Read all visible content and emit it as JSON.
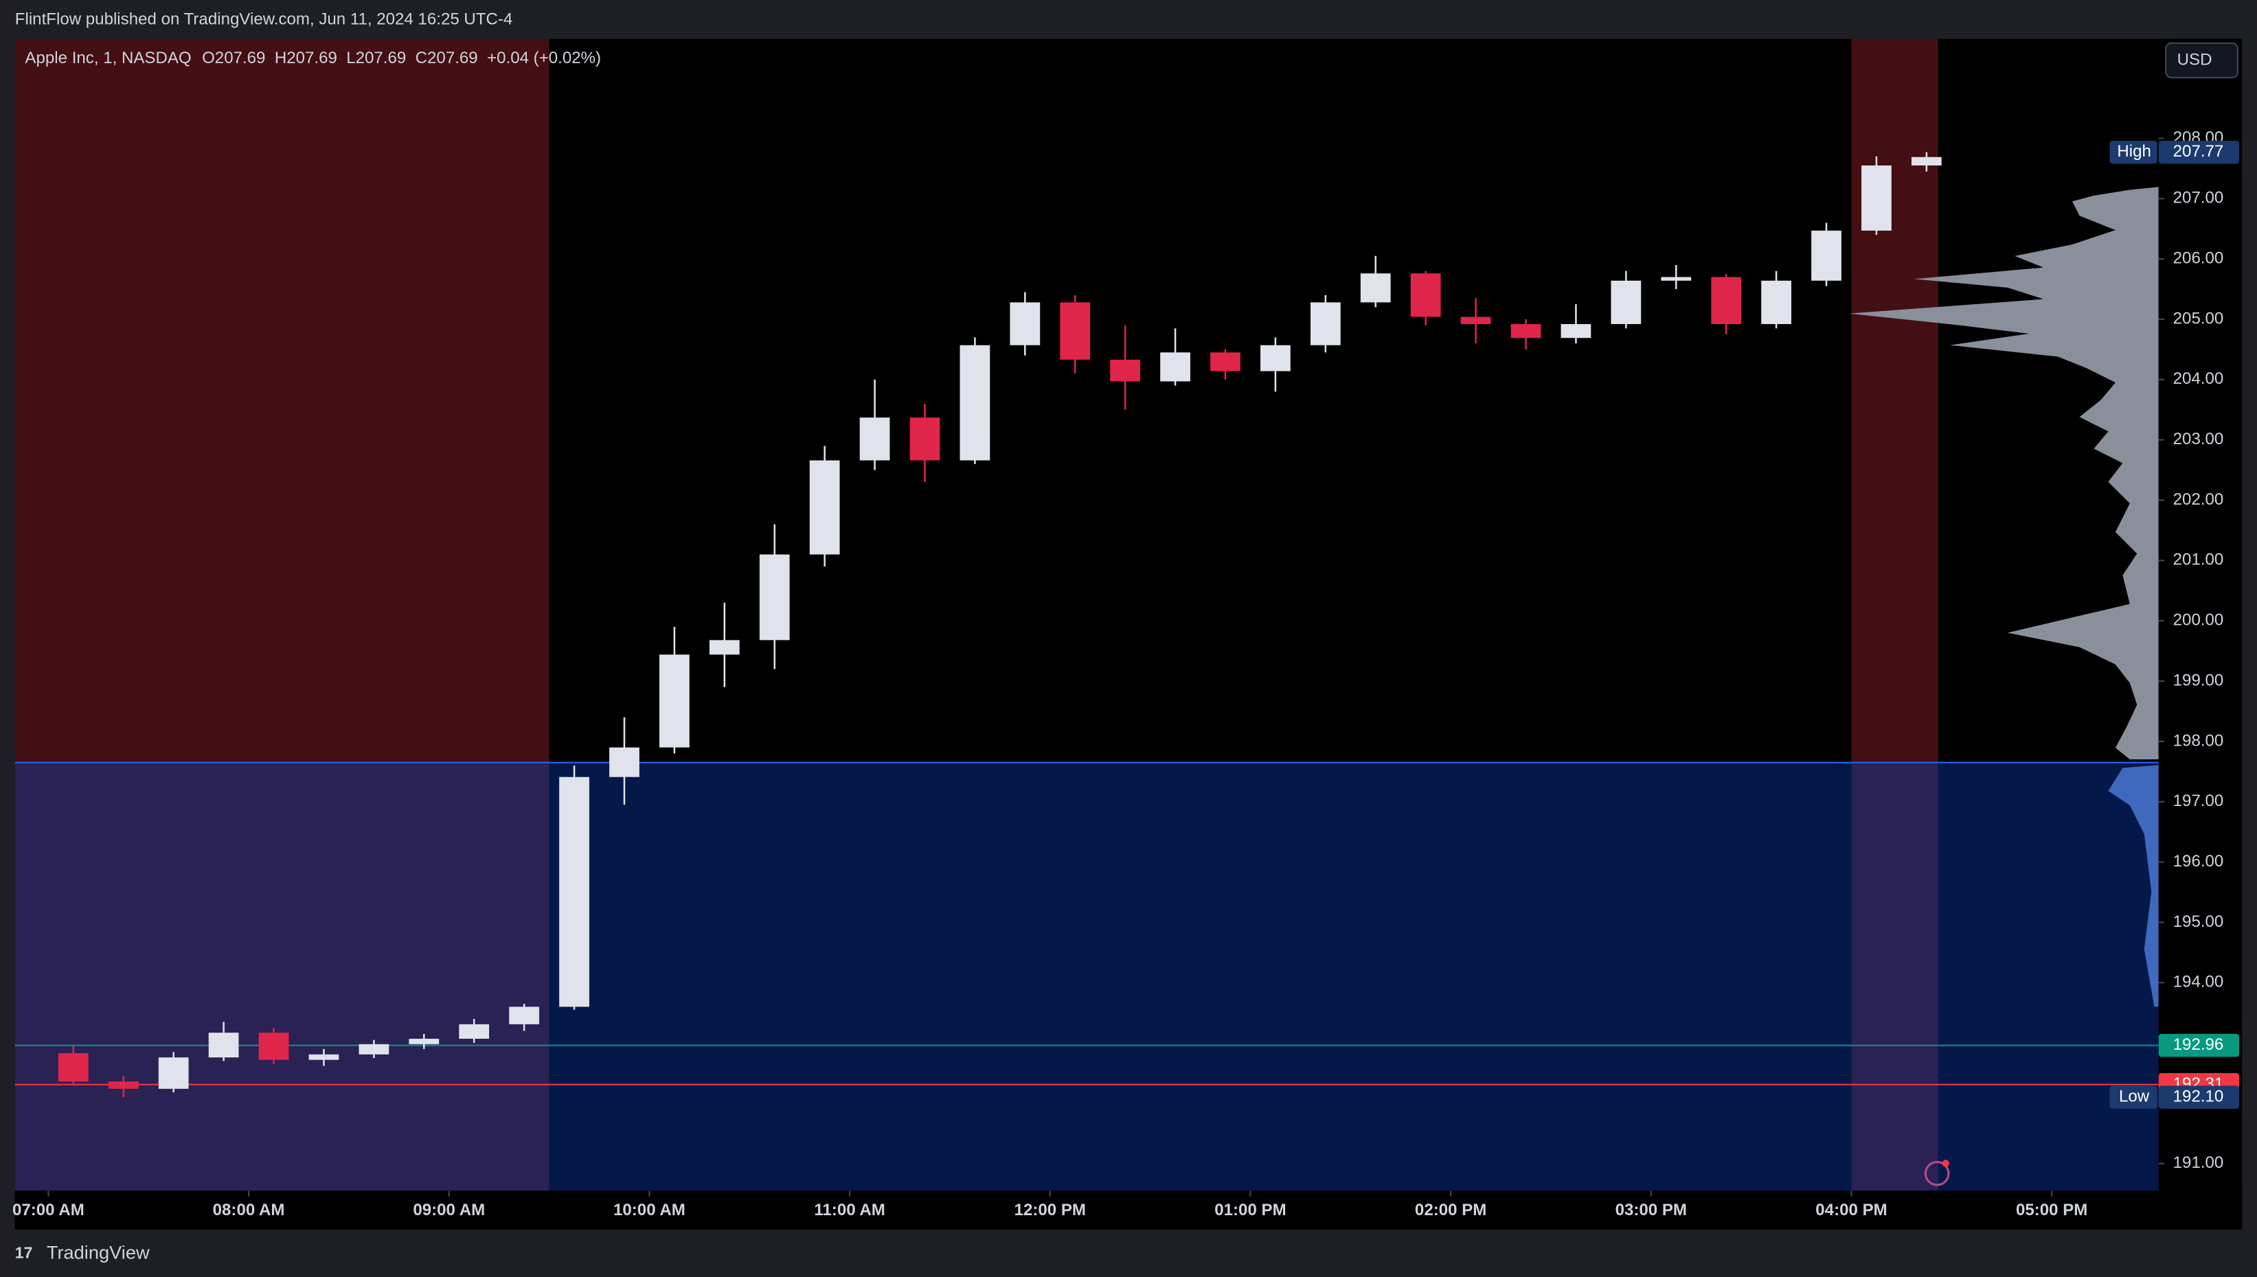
{
  "header": {
    "text": "FlintFlow published on TradingView.com, Jun 11, 2024 16:25 UTC-4"
  },
  "footer": {
    "brand": "TradingView"
  },
  "chart_data": {
    "type": "candlestick",
    "title": "Apple Inc, 1, NASDAQ",
    "ohlc_legend": "O207.69  H207.69  L207.69  C207.69  +0.04 (+0.02%)",
    "currency": "USD",
    "x": [
      "07:00",
      "07:15",
      "07:30",
      "07:45",
      "08:00",
      "08:15",
      "08:30",
      "08:45",
      "09:00",
      "09:15",
      "09:30",
      "09:45",
      "10:00",
      "10:15",
      "10:30",
      "10:45",
      "11:00",
      "11:15",
      "11:30",
      "11:45",
      "12:00",
      "12:15",
      "12:30",
      "12:45",
      "13:00",
      "13:15",
      "13:30",
      "13:45",
      "14:00",
      "14:15",
      "14:30",
      "14:45",
      "15:00",
      "15:15",
      "15:30",
      "15:45",
      "16:00",
      "16:15"
    ],
    "open": [
      192.83,
      192.36,
      192.24,
      192.76,
      193.17,
      192.72,
      192.81,
      192.98,
      193.07,
      193.31,
      193.6,
      197.41,
      197.9,
      199.44,
      199.68,
      201.1,
      202.66,
      203.37,
      202.66,
      204.57,
      205.28,
      204.33,
      203.97,
      204.45,
      204.14,
      204.57,
      205.28,
      205.76,
      205.04,
      204.92,
      204.69,
      204.92,
      205.64,
      205.7,
      204.92,
      205.64,
      206.47,
      207.55
    ],
    "high": [
      192.95,
      192.45,
      192.85,
      193.35,
      193.25,
      192.9,
      193.05,
      193.15,
      193.4,
      193.65,
      197.6,
      198.4,
      199.9,
      200.3,
      201.6,
      202.9,
      204.0,
      203.6,
      204.7,
      205.45,
      205.4,
      204.9,
      204.85,
      204.5,
      204.7,
      205.4,
      206.05,
      205.8,
      205.35,
      205.0,
      205.25,
      205.8,
      205.9,
      205.75,
      205.8,
      206.6,
      207.7,
      207.77
    ],
    "low": [
      192.3,
      192.1,
      192.18,
      192.7,
      192.65,
      192.62,
      192.75,
      192.9,
      193.0,
      193.2,
      193.55,
      196.95,
      197.8,
      198.9,
      199.2,
      200.9,
      202.5,
      202.3,
      202.6,
      204.4,
      204.1,
      203.5,
      203.9,
      204.0,
      203.8,
      204.45,
      205.2,
      204.9,
      204.6,
      204.5,
      204.6,
      204.85,
      205.5,
      204.75,
      204.85,
      205.55,
      206.4,
      207.45
    ],
    "close": [
      192.36,
      192.24,
      192.76,
      193.17,
      192.72,
      192.81,
      192.98,
      193.07,
      193.31,
      193.6,
      197.41,
      197.9,
      199.44,
      199.68,
      201.1,
      202.66,
      203.37,
      202.66,
      204.57,
      205.28,
      204.33,
      203.97,
      204.45,
      204.14,
      204.57,
      205.28,
      205.76,
      205.04,
      204.92,
      204.69,
      204.92,
      205.64,
      205.7,
      204.92,
      205.64,
      206.47,
      207.55,
      207.69
    ],
    "up_color": "#e0e3eb",
    "down_color": "#e0254b",
    "xlim": [
      "06:50",
      "17:32"
    ],
    "xticks": [
      {
        "value": "07:00",
        "label": "07:00 AM"
      },
      {
        "value": "08:00",
        "label": "08:00 AM"
      },
      {
        "value": "09:00",
        "label": "09:00 AM"
      },
      {
        "value": "10:00",
        "label": "10:00 AM"
      },
      {
        "value": "11:00",
        "label": "11:00 AM"
      },
      {
        "value": "12:00",
        "label": "12:00 PM"
      },
      {
        "value": "13:00",
        "label": "01:00 PM"
      },
      {
        "value": "14:00",
        "label": "02:00 PM"
      },
      {
        "value": "15:00",
        "label": "03:00 PM"
      },
      {
        "value": "16:00",
        "label": "04:00 PM"
      },
      {
        "value": "17:00",
        "label": "05:00 PM"
      }
    ],
    "ylim": [
      190.55,
      209.65
    ],
    "yticks": [
      {
        "value": 191,
        "label": "191.00"
      },
      {
        "value": 194,
        "label": "194.00"
      },
      {
        "value": 195,
        "label": "195.00"
      },
      {
        "value": 196,
        "label": "196.00"
      },
      {
        "value": 197,
        "label": "197.00"
      },
      {
        "value": 198,
        "label": "198.00"
      },
      {
        "value": 199,
        "label": "199.00"
      },
      {
        "value": 200,
        "label": "200.00"
      },
      {
        "value": 201,
        "label": "201.00"
      },
      {
        "value": 202,
        "label": "202.00"
      },
      {
        "value": 203,
        "label": "203.00"
      },
      {
        "value": 204,
        "label": "204.00"
      },
      {
        "value": 205,
        "label": "205.00"
      },
      {
        "value": 206,
        "label": "206.00"
      },
      {
        "value": 207,
        "label": "207.00"
      },
      {
        "value": 208,
        "label": "208.00"
      }
    ],
    "sessions": [
      {
        "start": "06:50",
        "end": "09:30",
        "color": "#f23645"
      },
      {
        "start": "16:00",
        "end": "16:26",
        "color": "#f23645"
      }
    ],
    "zone": {
      "top": 197.65,
      "color": "#0a3cad"
    },
    "levels": [
      {
        "name": "High",
        "value": 207.77,
        "label": "207.77",
        "color": "#1c3a6e",
        "line": false
      },
      {
        "value": 192.96,
        "label": "192.96",
        "color": "#089981",
        "line": true
      },
      {
        "value": 192.31,
        "label": "192.31",
        "color": "#f23645",
        "line": true
      },
      {
        "name": "Low",
        "value": 192.1,
        "label": "192.10",
        "color": "#1c3a6e",
        "line": false
      }
    ]
  }
}
